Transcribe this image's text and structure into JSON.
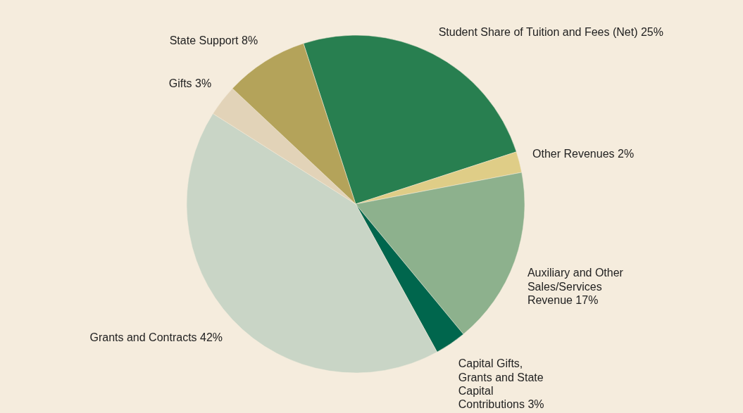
{
  "chart_data": {
    "type": "pie",
    "categories": [
      "Student Share of Tuition and Fees (Net)",
      "Other Revenues",
      "Auxiliary and Other Sales/Services Revenue",
      "Capital Gifts, Grants and State Capital Contributions",
      "Grants and Contracts",
      "Gifts",
      "State Support"
    ],
    "values": [
      25,
      2,
      17,
      3,
      42,
      3,
      8
    ],
    "colors": [
      "#287f50",
      "#dfcd87",
      "#8db18d",
      "#00664d",
      "#c9d5c6",
      "#e2d3b8",
      "#b4a35a"
    ],
    "value_labels": [
      "25%",
      "2%",
      "17%",
      "3%",
      "42%",
      "3%",
      "8%"
    ]
  }
}
